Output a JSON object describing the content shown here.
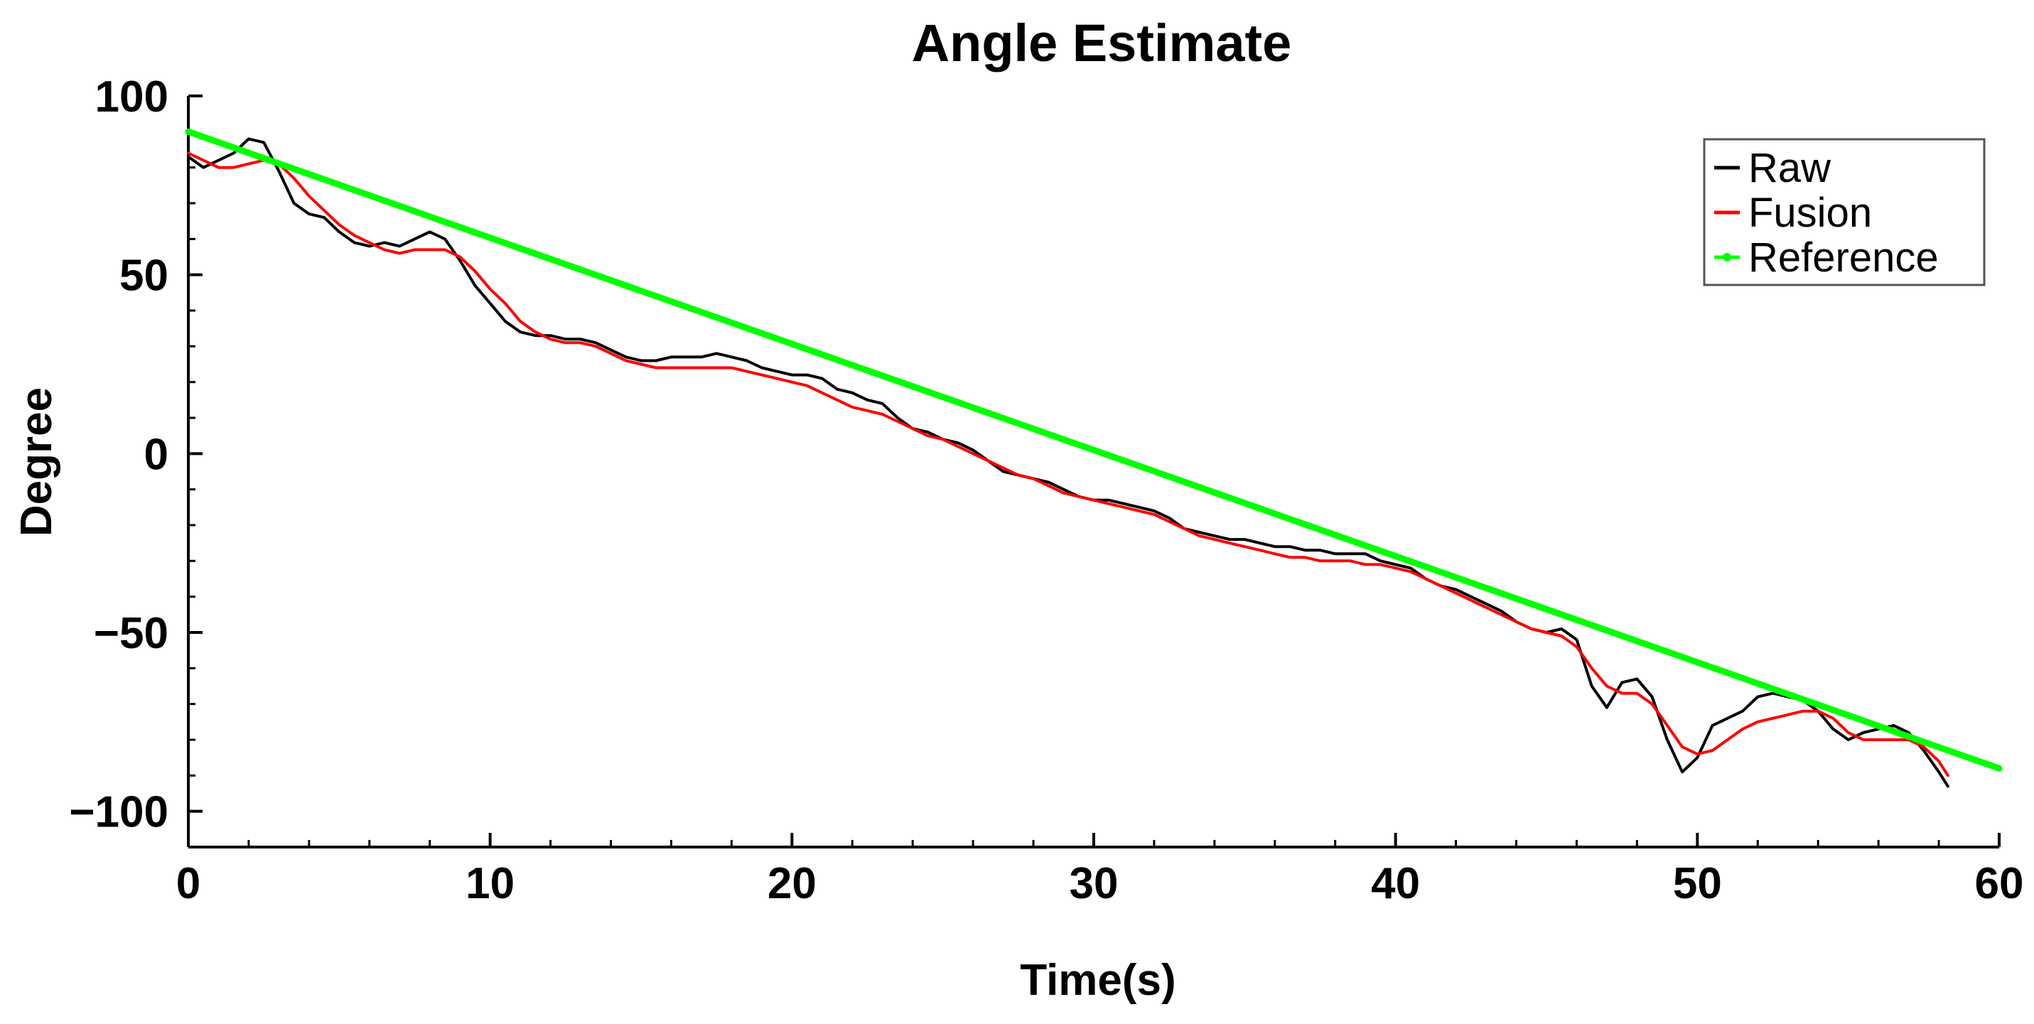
{
  "chart_data": {
    "type": "line",
    "title": "Angle Estimate",
    "xlabel": "Time(s)",
    "ylabel": "Degree",
    "xlim": [
      0,
      60
    ],
    "ylim": [
      -110,
      100
    ],
    "xticks": [
      0,
      10,
      20,
      30,
      40,
      50,
      60
    ],
    "yticks": [
      100,
      50,
      0,
      -50,
      -100
    ],
    "xtick_labels": [
      "0",
      "10",
      "20",
      "30",
      "40",
      "50",
      "60"
    ],
    "ytick_labels": [
      "100",
      "50",
      "0",
      "−50",
      "−100"
    ],
    "legend_position": "top-right",
    "series": [
      {
        "name": "Raw",
        "color": "#000000",
        "x": [
          0,
          0.5,
          1.0,
          1.5,
          2.0,
          2.5,
          3.0,
          3.5,
          4.0,
          4.5,
          5.0,
          5.5,
          6.0,
          6.5,
          7.0,
          7.5,
          8.0,
          8.5,
          9.0,
          9.5,
          10.0,
          10.5,
          11.0,
          11.5,
          12.0,
          12.5,
          13.0,
          13.5,
          14.0,
          14.5,
          15.0,
          15.5,
          16.0,
          16.5,
          17.0,
          17.5,
          18.0,
          18.5,
          19.0,
          19.5,
          20.0,
          20.5,
          21.0,
          21.5,
          22.0,
          22.5,
          23.0,
          23.5,
          24.0,
          24.5,
          25.0,
          25.5,
          26.0,
          26.5,
          27.0,
          27.5,
          28.0,
          28.5,
          29.0,
          29.5,
          30.0,
          30.5,
          31.0,
          31.5,
          32.0,
          32.5,
          33.0,
          33.5,
          34.0,
          34.5,
          35.0,
          35.5,
          36.0,
          36.5,
          37.0,
          37.5,
          38.0,
          38.5,
          39.0,
          39.5,
          40.0,
          40.5,
          41.0,
          41.5,
          42.0,
          42.5,
          43.0,
          43.5,
          44.0,
          44.5,
          45.0,
          45.5,
          46.0,
          46.5,
          47.0,
          47.5,
          48.0,
          48.5,
          49.0,
          49.5,
          50.0,
          50.5,
          51.0,
          51.5,
          52.0,
          52.5,
          53.0,
          53.5,
          54.0,
          54.5,
          55.0,
          55.5,
          56.0,
          56.5,
          57.0,
          57.5,
          58.0,
          58.3
        ],
        "values": [
          83,
          80,
          82,
          84,
          88,
          87,
          79,
          70,
          67,
          66,
          62,
          59,
          58,
          59,
          58,
          60,
          62,
          60,
          54,
          47,
          42,
          37,
          34,
          33,
          33,
          32,
          32,
          31,
          29,
          27,
          26,
          26,
          27,
          27,
          27,
          28,
          27,
          26,
          24,
          23,
          22,
          22,
          21,
          18,
          17,
          15,
          14,
          10,
          7,
          6,
          4,
          3,
          1,
          -2,
          -5,
          -6,
          -7,
          -8,
          -10,
          -12,
          -13,
          -13,
          -14,
          -15,
          -16,
          -18,
          -21,
          -22,
          -23,
          -24,
          -24,
          -25,
          -26,
          -26,
          -27,
          -27,
          -28,
          -28,
          -28,
          -30,
          -31,
          -32,
          -35,
          -37,
          -38,
          -40,
          -42,
          -44,
          -47,
          -49,
          -50,
          -49,
          -52,
          -65,
          -71,
          -64,
          -63,
          -68,
          -80,
          -89,
          -85,
          -76,
          -74,
          -72,
          -68,
          -67,
          -68,
          -69,
          -72,
          -77,
          -80,
          -78,
          -77,
          -76,
          -78,
          -83,
          -89,
          -93
        ]
      },
      {
        "name": "Fusion",
        "color": "#ff0000",
        "x": [
          0,
          0.5,
          1.0,
          1.5,
          2.0,
          2.5,
          3.0,
          3.5,
          4.0,
          4.5,
          5.0,
          5.5,
          6.0,
          6.5,
          7.0,
          7.5,
          8.0,
          8.5,
          9.0,
          9.5,
          10.0,
          10.5,
          11.0,
          11.5,
          12.0,
          12.5,
          13.0,
          13.5,
          14.0,
          14.5,
          15.0,
          15.5,
          16.0,
          16.5,
          17.0,
          17.5,
          18.0,
          18.5,
          19.0,
          19.5,
          20.0,
          20.5,
          21.0,
          21.5,
          22.0,
          22.5,
          23.0,
          23.5,
          24.0,
          24.5,
          25.0,
          25.5,
          26.0,
          26.5,
          27.0,
          27.5,
          28.0,
          28.5,
          29.0,
          29.5,
          30.0,
          30.5,
          31.0,
          31.5,
          32.0,
          32.5,
          33.0,
          33.5,
          34.0,
          34.5,
          35.0,
          35.5,
          36.0,
          36.5,
          37.0,
          37.5,
          38.0,
          38.5,
          39.0,
          39.5,
          40.0,
          40.5,
          41.0,
          41.5,
          42.0,
          42.5,
          43.0,
          43.5,
          44.0,
          44.5,
          45.0,
          45.5,
          46.0,
          46.5,
          47.0,
          47.5,
          48.0,
          48.5,
          49.0,
          49.5,
          50.0,
          50.5,
          51.0,
          51.5,
          52.0,
          52.5,
          53.0,
          53.5,
          54.0,
          54.5,
          55.0,
          55.5,
          56.0,
          56.5,
          57.0,
          57.5,
          58.0,
          58.3
        ],
        "values": [
          84,
          82,
          80,
          80,
          81,
          82,
          81,
          77,
          72,
          68,
          64,
          61,
          59,
          57,
          56,
          57,
          57,
          57,
          55,
          51,
          46,
          42,
          37,
          34,
          32,
          31,
          31,
          30,
          28,
          26,
          25,
          24,
          24,
          24,
          24,
          24,
          24,
          23,
          22,
          21,
          20,
          19,
          17,
          15,
          13,
          12,
          11,
          9,
          7,
          5,
          4,
          2,
          0,
          -2,
          -4,
          -6,
          -7,
          -9,
          -11,
          -12,
          -13,
          -14,
          -15,
          -16,
          -17,
          -19,
          -21,
          -23,
          -24,
          -25,
          -26,
          -27,
          -28,
          -29,
          -29,
          -30,
          -30,
          -30,
          -31,
          -31,
          -32,
          -33,
          -35,
          -37,
          -39,
          -41,
          -43,
          -45,
          -47,
          -49,
          -50,
          -51,
          -54,
          -60,
          -65,
          -67,
          -67,
          -70,
          -76,
          -82,
          -84,
          -83,
          -80,
          -77,
          -75,
          -74,
          -73,
          -72,
          -72,
          -74,
          -78,
          -80,
          -80,
          -80,
          -80,
          -82,
          -86,
          -90
        ]
      },
      {
        "name": "Reference",
        "color": "#00ff00",
        "x": [
          0,
          60
        ],
        "values": [
          90,
          -88
        ]
      }
    ]
  }
}
